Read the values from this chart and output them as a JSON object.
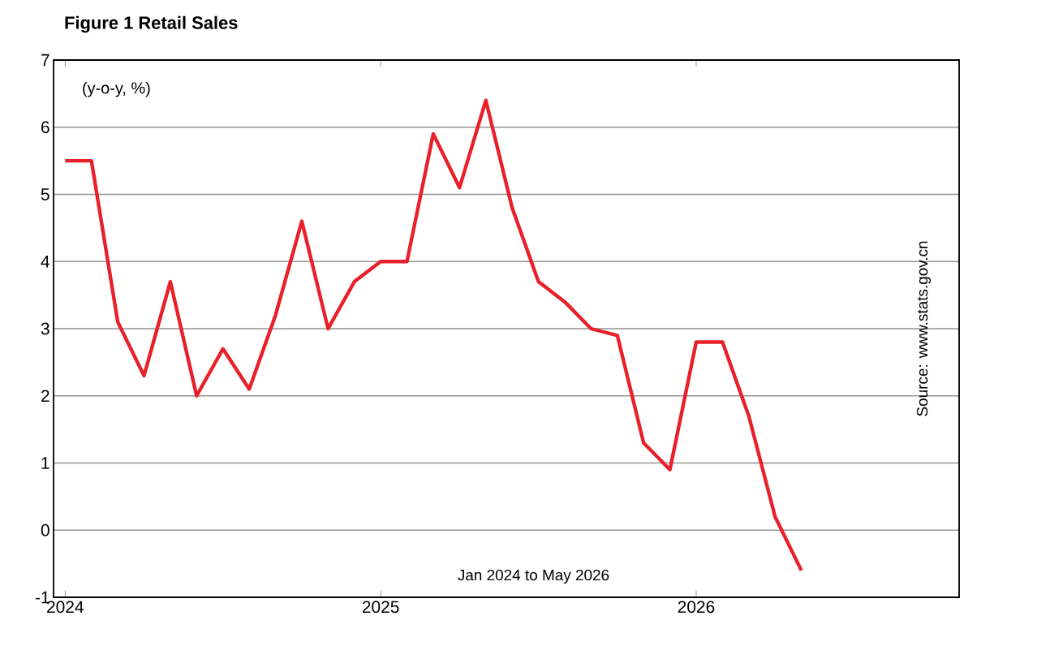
{
  "chart_data": {
    "type": "line",
    "title": "Figure 1  Retail Sales",
    "ylabel": "(y-o-y, %)",
    "annotations": [
      "Jan 2024  to May 2026",
      "Source: www.stats.gov.cn"
    ],
    "x": [
      "2024-01",
      "2024-02",
      "2024-03",
      "2024-04",
      "2024-05",
      "2024-06",
      "2024-07",
      "2024-08",
      "2024-09",
      "2024-10",
      "2024-11",
      "2024-12",
      "2025-01",
      "2025-02",
      "2025-03",
      "2025-04",
      "2025-05",
      "2025-06",
      "2025-07",
      "2025-08",
      "2025-09",
      "2025-10",
      "2025-11",
      "2025-12",
      "2026-01",
      "2026-02",
      "2026-03",
      "2026-04",
      "2026-05"
    ],
    "values": [
      5.5,
      5.5,
      3.1,
      2.3,
      3.7,
      2.0,
      2.7,
      2.1,
      3.2,
      4.6,
      3.0,
      3.7,
      4.0,
      4.0,
      5.9,
      5.1,
      6.4,
      4.8,
      3.7,
      3.4,
      3.0,
      2.9,
      1.3,
      0.9,
      2.8,
      2.8,
      1.7,
      0.2,
      -0.6
    ],
    "color": "#e8202a",
    "xlim": [
      "2023-12-18",
      "2026-11-01"
    ],
    "xticks": [
      "2024",
      "2025",
      "2026"
    ],
    "ylim": [
      -1,
      7
    ],
    "yticks": [
      -1,
      0,
      1,
      2,
      3,
      4,
      5,
      6,
      7
    ],
    "grid": "y"
  }
}
